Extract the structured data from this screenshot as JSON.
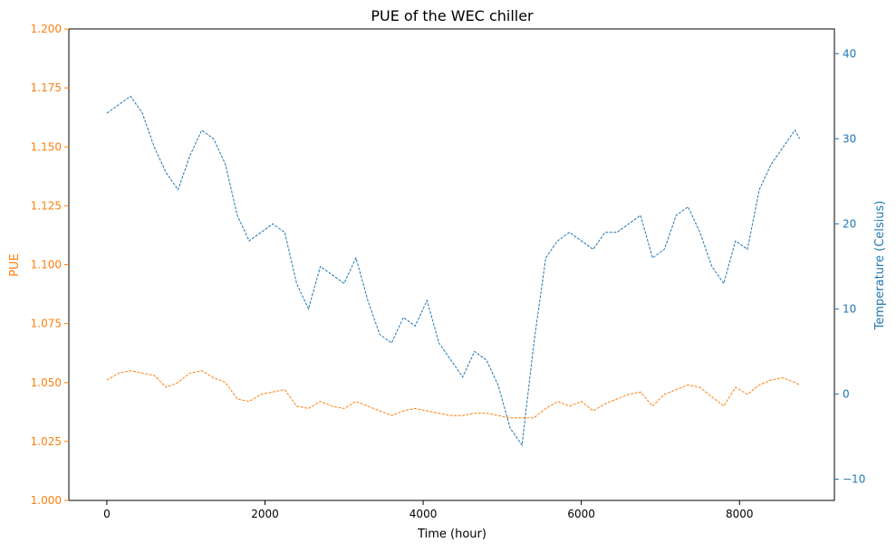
{
  "chart_data": {
    "type": "line",
    "title": "PUE of the WEC chiller",
    "xlabel": "Time (hour)",
    "ylabel_left": "PUE",
    "ylabel_right": "Temperature (Celsius)",
    "xlim": [
      -480,
      9200
    ],
    "ylim_left": [
      1.0,
      1.2
    ],
    "ylim_right": [
      -12.5,
      42.9
    ],
    "x_ticks": [
      {
        "value": 0,
        "label": "0"
      },
      {
        "value": 2000,
        "label": "2000"
      },
      {
        "value": 4000,
        "label": "4000"
      },
      {
        "value": 6000,
        "label": "6000"
      },
      {
        "value": 8000,
        "label": "8000"
      }
    ],
    "y_left_ticks": [
      {
        "value": 1.0,
        "label": "1.000"
      },
      {
        "value": 1.025,
        "label": "1.025"
      },
      {
        "value": 1.05,
        "label": "1.050"
      },
      {
        "value": 1.075,
        "label": "1.075"
      },
      {
        "value": 1.1,
        "label": "1.100"
      },
      {
        "value": 1.125,
        "label": "1.125"
      },
      {
        "value": 1.15,
        "label": "1.150"
      },
      {
        "value": 1.175,
        "label": "1.175"
      },
      {
        "value": 1.2,
        "label": "1.200"
      }
    ],
    "y_right_ticks": [
      {
        "value": -10,
        "label": "−10"
      },
      {
        "value": 0,
        "label": "0"
      },
      {
        "value": 10,
        "label": "10"
      },
      {
        "value": 20,
        "label": "20"
      },
      {
        "value": 30,
        "label": "30"
      },
      {
        "value": 40,
        "label": "40"
      }
    ],
    "grid": false,
    "series": [
      {
        "axis": "left",
        "color": "#ff7f0e",
        "line_style": "dashed",
        "x": [
          0,
          150,
          300,
          450,
          600,
          750,
          900,
          1050,
          1200,
          1350,
          1500,
          1650,
          1800,
          1950,
          2100,
          2250,
          2400,
          2550,
          2700,
          2850,
          3000,
          3150,
          3300,
          3450,
          3600,
          3750,
          3900,
          4050,
          4200,
          4350,
          4500,
          4650,
          4800,
          4950,
          5100,
          5250,
          5400,
          5550,
          5700,
          5850,
          6000,
          6150,
          6300,
          6450,
          6600,
          6750,
          6900,
          7050,
          7200,
          7350,
          7500,
          7650,
          7800,
          7950,
          8100,
          8250,
          8400,
          8550,
          8700,
          8760
        ],
        "values": [
          1.051,
          1.054,
          1.055,
          1.054,
          1.053,
          1.048,
          1.05,
          1.054,
          1.055,
          1.052,
          1.05,
          1.043,
          1.042,
          1.045,
          1.046,
          1.047,
          1.04,
          1.039,
          1.042,
          1.04,
          1.039,
          1.042,
          1.04,
          1.038,
          1.036,
          1.038,
          1.039,
          1.038,
          1.037,
          1.036,
          1.036,
          1.037,
          1.037,
          1.036,
          1.035,
          1.035,
          1.035,
          1.039,
          1.042,
          1.04,
          1.042,
          1.038,
          1.041,
          1.043,
          1.045,
          1.046,
          1.04,
          1.045,
          1.047,
          1.049,
          1.048,
          1.044,
          1.04,
          1.048,
          1.045,
          1.049,
          1.051,
          1.052,
          1.05,
          1.049
        ]
      },
      {
        "axis": "right",
        "color": "#1f77b4",
        "line_style": "dashed",
        "x": [
          0,
          150,
          300,
          450,
          600,
          750,
          900,
          1050,
          1200,
          1350,
          1500,
          1650,
          1800,
          1950,
          2100,
          2250,
          2400,
          2550,
          2700,
          2850,
          3000,
          3150,
          3300,
          3450,
          3600,
          3750,
          3900,
          4050,
          4200,
          4350,
          4500,
          4650,
          4800,
          4950,
          5100,
          5250,
          5400,
          5550,
          5700,
          5850,
          6000,
          6150,
          6300,
          6450,
          6600,
          6750,
          6900,
          7050,
          7200,
          7350,
          7500,
          7650,
          7800,
          7950,
          8100,
          8250,
          8400,
          8550,
          8700,
          8760
        ],
        "values": [
          33,
          34,
          35,
          33,
          29,
          26,
          24,
          28,
          31,
          30,
          27,
          21,
          18,
          19,
          20,
          19,
          13,
          10,
          15,
          14,
          13,
          16,
          11,
          7,
          6,
          9,
          8,
          11,
          6,
          4,
          2,
          5,
          4,
          1,
          -4,
          -6,
          6,
          16,
          18,
          19,
          18,
          17,
          19,
          19,
          20,
          21,
          16,
          17,
          21,
          22,
          19,
          15,
          13,
          18,
          17,
          24,
          27,
          29,
          31,
          30
        ]
      }
    ]
  }
}
